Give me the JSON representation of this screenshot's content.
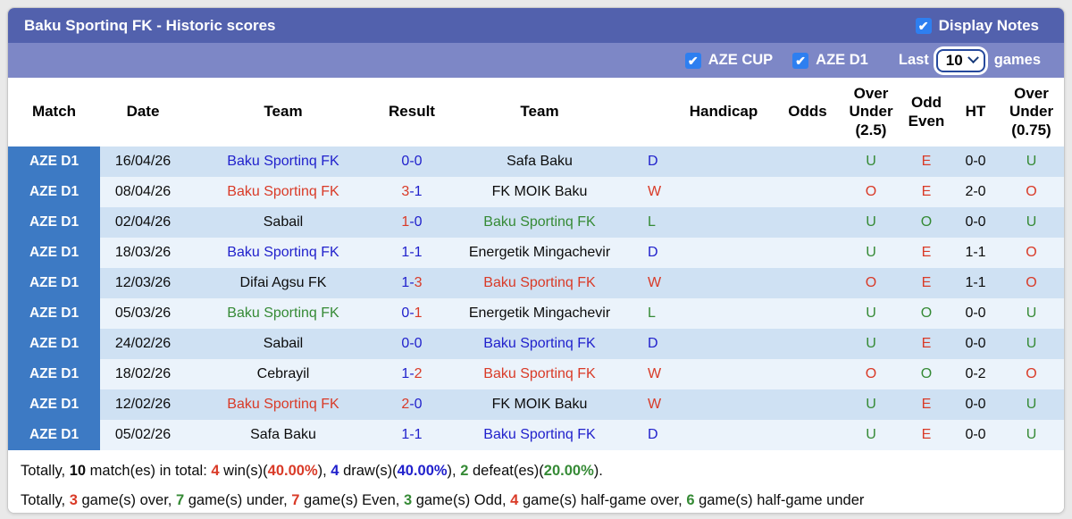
{
  "colors": {
    "page_bg": "#e9e9e9",
    "title_bar": "#5261ad",
    "filter_bar": "#7d87c6",
    "checkbox_blue": "#2e7ff0",
    "match_blue": "#3d7ac4",
    "row_odd": "#cfe1f3",
    "row_even": "#ebf3fb",
    "text_blue": "#2121cc",
    "text_red": "#d93a27",
    "text_green": "#358a35"
  },
  "title_bar": {
    "title": "Baku Sportinq FK - Historic scores",
    "display_notes_label": "Display Notes",
    "check_glyph": "✔"
  },
  "filter_bar": {
    "aze_cup_label": "AZE CUP",
    "aze_d1_label": "AZE D1",
    "last_label": "Last",
    "last_games_value": "10",
    "games_label": "games"
  },
  "table": {
    "headers": [
      "Match",
      "Date",
      "Team",
      "Result",
      "Team",
      "",
      "Handicap",
      "Odds",
      "Over Under (2.5)",
      "Odd Even",
      "HT",
      "Over Under (0.75)"
    ],
    "rows": [
      {
        "league": "AZE D1",
        "date": "16/04/26",
        "team1": {
          "name": "Baku Sportinq FK",
          "color": "blue"
        },
        "score1": {
          "v": "0",
          "color": "blue"
        },
        "score2": {
          "v": "0",
          "color": "blue"
        },
        "team2": {
          "name": "Safa Baku",
          "color": "black"
        },
        "wdl": {
          "v": "D",
          "color": "blue"
        },
        "handicap": "",
        "odds": "",
        "ou25": {
          "v": "U",
          "color": "green"
        },
        "odd_even": {
          "v": "E",
          "color": "red"
        },
        "ht": "0-0",
        "ou075": {
          "v": "U",
          "color": "green"
        }
      },
      {
        "league": "AZE D1",
        "date": "08/04/26",
        "team1": {
          "name": "Baku Sportinq FK",
          "color": "red"
        },
        "score1": {
          "v": "3",
          "color": "red"
        },
        "score2": {
          "v": "1",
          "color": "blue"
        },
        "team2": {
          "name": "FK MOIK Baku",
          "color": "black"
        },
        "wdl": {
          "v": "W",
          "color": "red"
        },
        "handicap": "",
        "odds": "",
        "ou25": {
          "v": "O",
          "color": "red"
        },
        "odd_even": {
          "v": "E",
          "color": "red"
        },
        "ht": "2-0",
        "ou075": {
          "v": "O",
          "color": "red"
        }
      },
      {
        "league": "AZE D1",
        "date": "02/04/26",
        "team1": {
          "name": "Sabail",
          "color": "black"
        },
        "score1": {
          "v": "1",
          "color": "red"
        },
        "score2": {
          "v": "0",
          "color": "blue"
        },
        "team2": {
          "name": "Baku Sportinq FK",
          "color": "green"
        },
        "wdl": {
          "v": "L",
          "color": "green"
        },
        "handicap": "",
        "odds": "",
        "ou25": {
          "v": "U",
          "color": "green"
        },
        "odd_even": {
          "v": "O",
          "color": "green"
        },
        "ht": "0-0",
        "ou075": {
          "v": "U",
          "color": "green"
        }
      },
      {
        "league": "AZE D1",
        "date": "18/03/26",
        "team1": {
          "name": "Baku Sportinq FK",
          "color": "blue"
        },
        "score1": {
          "v": "1",
          "color": "blue"
        },
        "score2": {
          "v": "1",
          "color": "blue"
        },
        "team2": {
          "name": "Energetik Mingachevir",
          "color": "black"
        },
        "wdl": {
          "v": "D",
          "color": "blue"
        },
        "handicap": "",
        "odds": "",
        "ou25": {
          "v": "U",
          "color": "green"
        },
        "odd_even": {
          "v": "E",
          "color": "red"
        },
        "ht": "1-1",
        "ou075": {
          "v": "O",
          "color": "red"
        }
      },
      {
        "league": "AZE D1",
        "date": "12/03/26",
        "team1": {
          "name": "Difai Agsu FK",
          "color": "black"
        },
        "score1": {
          "v": "1",
          "color": "blue"
        },
        "score2": {
          "v": "3",
          "color": "red"
        },
        "team2": {
          "name": "Baku Sportinq FK",
          "color": "red"
        },
        "wdl": {
          "v": "W",
          "color": "red"
        },
        "handicap": "",
        "odds": "",
        "ou25": {
          "v": "O",
          "color": "red"
        },
        "odd_even": {
          "v": "E",
          "color": "red"
        },
        "ht": "1-1",
        "ou075": {
          "v": "O",
          "color": "red"
        }
      },
      {
        "league": "AZE D1",
        "date": "05/03/26",
        "team1": {
          "name": "Baku Sportinq FK",
          "color": "green"
        },
        "score1": {
          "v": "0",
          "color": "blue"
        },
        "score2": {
          "v": "1",
          "color": "red"
        },
        "team2": {
          "name": "Energetik Mingachevir",
          "color": "black"
        },
        "wdl": {
          "v": "L",
          "color": "green"
        },
        "handicap": "",
        "odds": "",
        "ou25": {
          "v": "U",
          "color": "green"
        },
        "odd_even": {
          "v": "O",
          "color": "green"
        },
        "ht": "0-0",
        "ou075": {
          "v": "U",
          "color": "green"
        }
      },
      {
        "league": "AZE D1",
        "date": "24/02/26",
        "team1": {
          "name": "Sabail",
          "color": "black"
        },
        "score1": {
          "v": "0",
          "color": "blue"
        },
        "score2": {
          "v": "0",
          "color": "blue"
        },
        "team2": {
          "name": "Baku Sportinq FK",
          "color": "blue"
        },
        "wdl": {
          "v": "D",
          "color": "blue"
        },
        "handicap": "",
        "odds": "",
        "ou25": {
          "v": "U",
          "color": "green"
        },
        "odd_even": {
          "v": "E",
          "color": "red"
        },
        "ht": "0-0",
        "ou075": {
          "v": "U",
          "color": "green"
        }
      },
      {
        "league": "AZE D1",
        "date": "18/02/26",
        "team1": {
          "name": "Cebrayil",
          "color": "black"
        },
        "score1": {
          "v": "1",
          "color": "blue"
        },
        "score2": {
          "v": "2",
          "color": "red"
        },
        "team2": {
          "name": "Baku Sportinq FK",
          "color": "red"
        },
        "wdl": {
          "v": "W",
          "color": "red"
        },
        "handicap": "",
        "odds": "",
        "ou25": {
          "v": "O",
          "color": "red"
        },
        "odd_even": {
          "v": "O",
          "color": "green"
        },
        "ht": "0-2",
        "ou075": {
          "v": "O",
          "color": "red"
        }
      },
      {
        "league": "AZE D1",
        "date": "12/02/26",
        "team1": {
          "name": "Baku Sportinq FK",
          "color": "red"
        },
        "score1": {
          "v": "2",
          "color": "red"
        },
        "score2": {
          "v": "0",
          "color": "blue"
        },
        "team2": {
          "name": "FK MOIK Baku",
          "color": "black"
        },
        "wdl": {
          "v": "W",
          "color": "red"
        },
        "handicap": "",
        "odds": "",
        "ou25": {
          "v": "U",
          "color": "green"
        },
        "odd_even": {
          "v": "E",
          "color": "red"
        },
        "ht": "0-0",
        "ou075": {
          "v": "U",
          "color": "green"
        }
      },
      {
        "league": "AZE D1",
        "date": "05/02/26",
        "team1": {
          "name": "Safa Baku",
          "color": "black"
        },
        "score1": {
          "v": "1",
          "color": "blue"
        },
        "score2": {
          "v": "1",
          "color": "blue"
        },
        "team2": {
          "name": "Baku Sportinq FK",
          "color": "blue"
        },
        "wdl": {
          "v": "D",
          "color": "blue"
        },
        "handicap": "",
        "odds": "",
        "ou25": {
          "v": "U",
          "color": "green"
        },
        "odd_even": {
          "v": "E",
          "color": "red"
        },
        "ht": "0-0",
        "ou075": {
          "v": "U",
          "color": "green"
        }
      }
    ]
  },
  "footer": {
    "lines": [
      [
        {
          "t": "Totally, ",
          "c": "black",
          "b": false
        },
        {
          "t": "10",
          "c": "black",
          "b": true
        },
        {
          "t": " match(es) in total: ",
          "c": "black",
          "b": false
        },
        {
          "t": "4",
          "c": "red",
          "b": true
        },
        {
          "t": " win(s)(",
          "c": "black",
          "b": false
        },
        {
          "t": "40.00%",
          "c": "red",
          "b": true
        },
        {
          "t": "), ",
          "c": "black",
          "b": false
        },
        {
          "t": "4",
          "c": "blue",
          "b": true
        },
        {
          "t": " draw(s)(",
          "c": "black",
          "b": false
        },
        {
          "t": "40.00%",
          "c": "blue",
          "b": true
        },
        {
          "t": "), ",
          "c": "black",
          "b": false
        },
        {
          "t": "2",
          "c": "green",
          "b": true
        },
        {
          "t": " defeat(es)(",
          "c": "black",
          "b": false
        },
        {
          "t": "20.00%",
          "c": "green",
          "b": true
        },
        {
          "t": ").",
          "c": "black",
          "b": false
        }
      ],
      [
        {
          "t": "Totally, ",
          "c": "black",
          "b": false
        },
        {
          "t": "3",
          "c": "red",
          "b": true
        },
        {
          "t": " game(s) over, ",
          "c": "black",
          "b": false
        },
        {
          "t": "7",
          "c": "green",
          "b": true
        },
        {
          "t": " game(s) under, ",
          "c": "black",
          "b": false
        },
        {
          "t": "7",
          "c": "red",
          "b": true
        },
        {
          "t": " game(s) Even, ",
          "c": "black",
          "b": false
        },
        {
          "t": "3",
          "c": "green",
          "b": true
        },
        {
          "t": " game(s) Odd, ",
          "c": "black",
          "b": false
        },
        {
          "t": "4",
          "c": "red",
          "b": true
        },
        {
          "t": " game(s) half-game over, ",
          "c": "black",
          "b": false
        },
        {
          "t": "6",
          "c": "green",
          "b": true
        },
        {
          "t": " game(s) half-game under",
          "c": "black",
          "b": false
        }
      ]
    ]
  }
}
